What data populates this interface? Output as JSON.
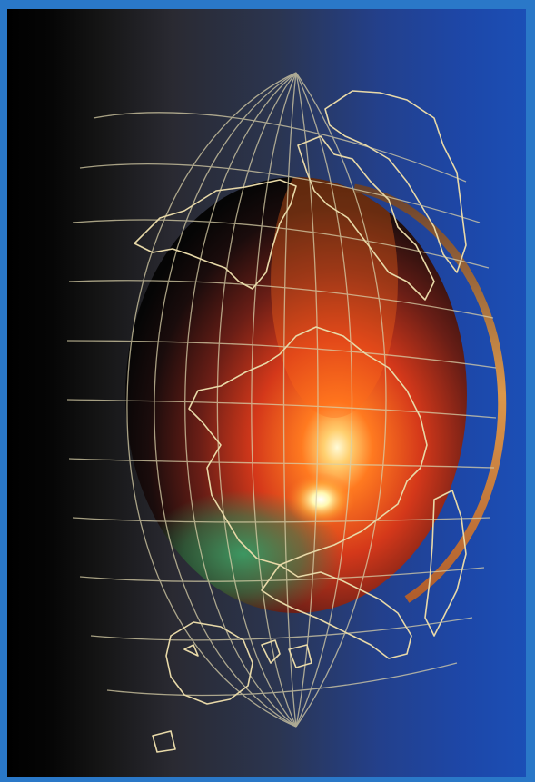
{
  "image": {
    "subject": "satellite-globe",
    "colors": {
      "frame": "#2a78c8",
      "space_dark": "#000000",
      "sky_blue": "#1d47a8",
      "glow_orange": "#ff6a1a",
      "glow_red": "#b8261a",
      "glow_green": "#2a8a55",
      "hotspot": "#fffad0",
      "grid_line": "#d8cfa8",
      "coastline": "#e8d9a8",
      "rim": "#f0a040"
    }
  }
}
